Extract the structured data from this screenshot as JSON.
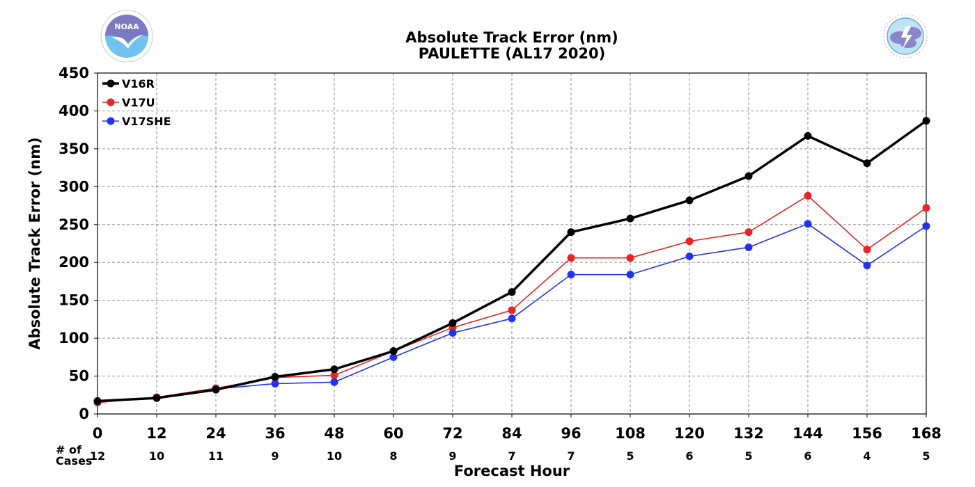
{
  "chart_data": {
    "type": "line",
    "title": "Absolute Track Error (nm)",
    "subtitle": "PAULETTE (AL17 2020)",
    "xlabel": "Forecast Hour",
    "ylabel": "Absolute Track Error (nm)",
    "x": [
      0,
      12,
      24,
      36,
      48,
      60,
      72,
      84,
      96,
      108,
      120,
      132,
      144,
      156,
      168
    ],
    "xlim": [
      0,
      168
    ],
    "ylim": [
      0,
      450
    ],
    "yticks": [
      0,
      50,
      100,
      150,
      200,
      250,
      300,
      350,
      400,
      450
    ],
    "grid": true,
    "legend_position": "top-left",
    "cases_label_line1": "# of",
    "cases_label_line2": "Cases",
    "cases": [
      12,
      10,
      11,
      9,
      10,
      8,
      9,
      7,
      7,
      5,
      6,
      5,
      6,
      4,
      5
    ],
    "series": [
      {
        "name": "V16R",
        "color": "#000000",
        "line_style": "thick",
        "values": [
          17,
          21,
          32,
          49,
          59,
          83,
          120,
          161,
          240,
          258,
          282,
          314,
          367,
          331,
          387
        ]
      },
      {
        "name": "V17U",
        "color": "#ee2222",
        "line_style": "thin",
        "values": [
          15,
          22,
          34,
          48,
          51,
          83,
          114,
          137,
          206,
          206,
          228,
          240,
          288,
          217,
          272
        ]
      },
      {
        "name": "V17SHE",
        "color": "#2233ee",
        "line_style": "thin",
        "values": [
          17,
          21,
          33,
          40,
          42,
          75,
          107,
          126,
          184,
          184,
          208,
          220,
          251,
          196,
          248
        ]
      }
    ]
  },
  "logos": {
    "left": {
      "icon": "noaa-logo",
      "text": "NOAA"
    },
    "right": {
      "icon": "nws-logo",
      "text": "NATIONAL WEATHER SERVICE"
    }
  }
}
